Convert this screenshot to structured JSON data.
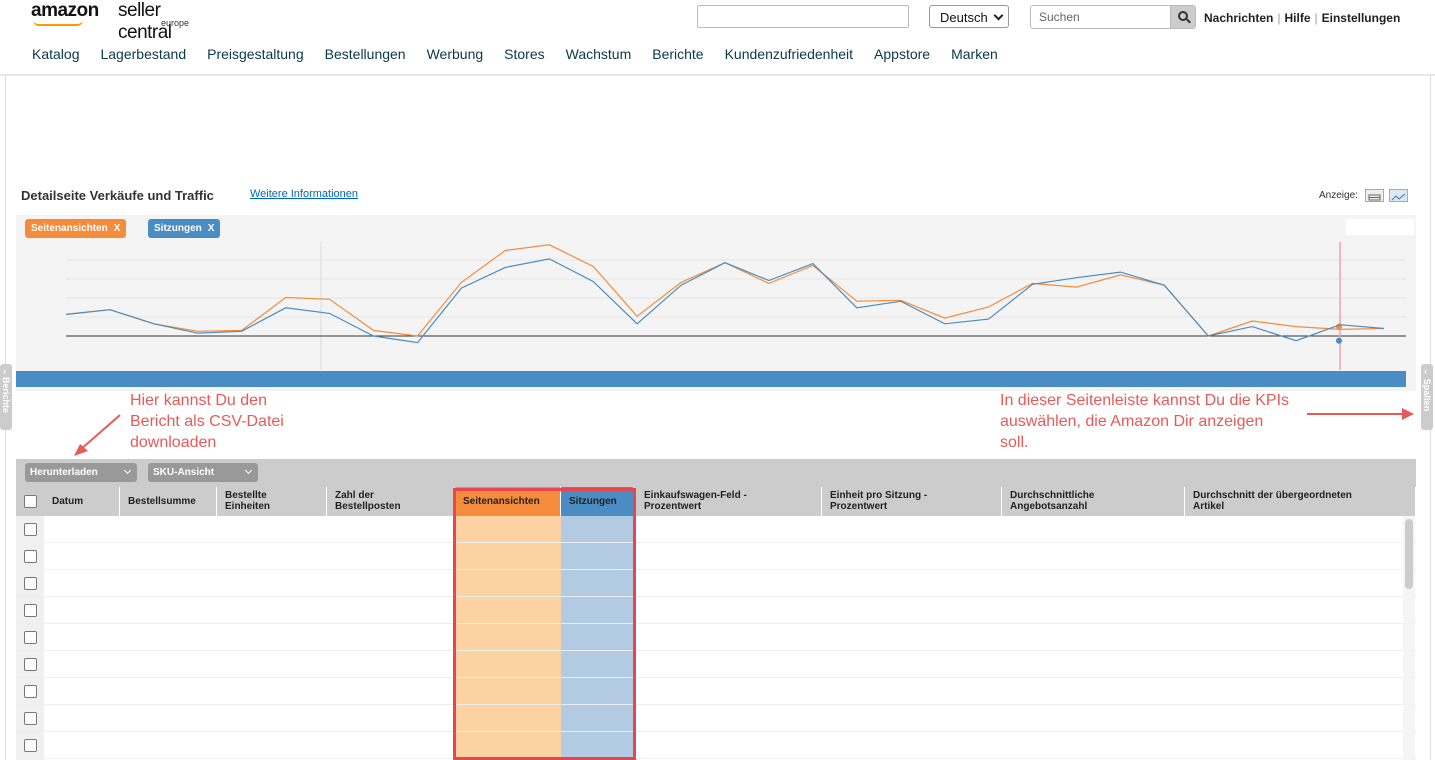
{
  "header": {
    "logo_main": "amazon",
    "logo_sub": "seller central",
    "logo_region": "europe",
    "language": "Deutsch",
    "search_placeholder": "Suchen",
    "links": [
      "Nachrichten",
      "Hilfe",
      "Einstellungen"
    ]
  },
  "nav": {
    "items": [
      "Katalog",
      "Lagerbestand",
      "Preisgestaltung",
      "Bestellungen",
      "Werbung",
      "Stores",
      "Wachstum",
      "Berichte",
      "Kundenzufriedenheit",
      "Appstore",
      "Marken"
    ]
  },
  "section": {
    "title": "Detailseite Verkäufe und Traffic",
    "more_link": "Weitere Informationen",
    "view_label": "Anzeige:"
  },
  "chips": [
    {
      "label": "Seitenansichten",
      "close": "X",
      "color": "#f58c3c"
    },
    {
      "label": "Sitzungen",
      "close": "X",
      "color": "#4a8cc4"
    }
  ],
  "annotations": {
    "left": [
      "Hier kannst Du den",
      "Bericht als CSV-Datei",
      "downloaden"
    ],
    "right": [
      "In dieser Seitenleiste kannst Du die KPIs",
      "auswählen, die Amazon Dir anzeigen",
      "soll."
    ]
  },
  "side_tabs": {
    "left": "Berichte",
    "right": "Spalten"
  },
  "toolbar": {
    "download": "Herunterladen",
    "sku_view": "SKU-Ansicht"
  },
  "table": {
    "columns": [
      [
        "Datum"
      ],
      [
        "Bestellsumme"
      ],
      [
        "Bestellte",
        "Einheiten"
      ],
      [
        "Zahl der",
        "Bestellposten"
      ],
      [
        "Seitenansichten"
      ],
      [
        "Sitzungen"
      ],
      [
        "Einkaufswagen-Feld -",
        "Prozentwert"
      ],
      [
        "Einheit pro Sitzung -",
        "Prozentwert"
      ],
      [
        "Durchschnittliche",
        "Angebotsanzahl"
      ],
      [
        "Durchschnitt der übergeordneten",
        "Artikel"
      ]
    ],
    "row_count": 9
  },
  "chart_data": {
    "type": "line",
    "series": [
      {
        "name": "Seitenansichten",
        "color": "#f58c3c",
        "values": [
          0.23,
          0.28,
          0.13,
          0.05,
          0.06,
          0.41,
          0.39,
          0.06,
          0.0,
          0.57,
          0.91,
          0.97,
          0.74,
          0.21,
          0.57,
          0.78,
          0.56,
          0.75,
          0.37,
          0.38,
          0.19,
          0.31,
          0.56,
          0.52,
          0.65,
          0.54,
          0.0,
          0.16,
          0.1,
          0.07,
          0.08
        ]
      },
      {
        "name": "Sitzungen",
        "color": "#4a8cc4",
        "values": [
          0.23,
          0.28,
          0.13,
          0.03,
          0.05,
          0.3,
          0.24,
          0.0,
          -0.07,
          0.51,
          0.73,
          0.82,
          0.58,
          0.13,
          0.54,
          0.78,
          0.59,
          0.77,
          0.3,
          0.37,
          0.13,
          0.18,
          0.55,
          0.62,
          0.68,
          0.54,
          0.0,
          0.1,
          -0.05,
          0.12,
          0.08
        ]
      }
    ],
    "grid": true
  }
}
